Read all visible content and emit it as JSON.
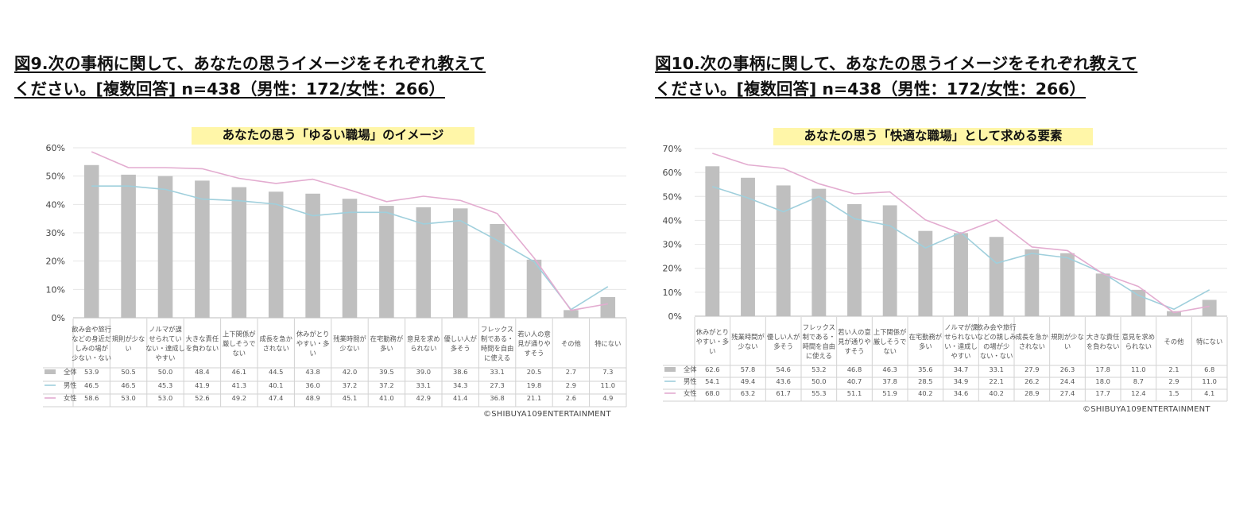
{
  "figures": [
    {
      "title_lines": [
        "図9.次の事柄に関して、あなたの思うイメージをそれぞれ教えて",
        "ください。[複数回答] n=438（男性：172/女性：266）"
      ],
      "copyright": "©SHIBUYA109ENTERTAINMENT"
    },
    {
      "title_lines": [
        "図10.次の事柄に関して、あなたの思うイメージをそれぞれ教えて",
        "ください。[複数回答] n=438（男性：172/女性：266）"
      ],
      "copyright": "©SHIBUYA109ENTERTAINMENT"
    }
  ],
  "chart_data": [
    {
      "type": "bar",
      "title": "あなたの思う「ゆるい職場」のイメージ",
      "ylim": [
        0,
        60
      ],
      "yticks": [
        "0%",
        "10%",
        "20%",
        "30%",
        "40%",
        "50%",
        "60%"
      ],
      "grid": true,
      "categories": [
        "飲み会や旅行などの身近しみの場が少ない・ない",
        "規則が少ない",
        "ノルマが課せられていない・達成しやすい",
        "大きな責任を負わない",
        "上下関係が厳しそうでない",
        "成長を急かされない",
        "休みがとりやすい・多い",
        "残業時間が少ない",
        "在宅勤務が多い",
        "意見を求められない",
        "優しい人が多そう",
        "フレックス制である・時間を自由に使える",
        "若い人の意見が通りやすそう",
        "その他",
        "特にない"
      ],
      "category_lines": [
        [
          "飲み会や旅行",
          "などの身近だ",
          "しみの場が",
          "少ない・ない"
        ],
        [
          "規則が少な",
          "い"
        ],
        [
          "ノルマが課",
          "せられてい",
          "ない・達成し",
          "やすい"
        ],
        [
          "大きな責任",
          "を負わない"
        ],
        [
          "上下関係が",
          "厳しそうで",
          "ない"
        ],
        [
          "成長を急か",
          "されない"
        ],
        [
          "休みがとり",
          "やすい・多",
          "い"
        ],
        [
          "残業時間が",
          "少ない"
        ],
        [
          "在宅勤務が",
          "多い"
        ],
        [
          "意見を求め",
          "られない"
        ],
        [
          "優しい人が",
          "多そう"
        ],
        [
          "フレックス",
          "制である・",
          "時間を自由",
          "に使える"
        ],
        [
          "若い人の意",
          "見が通りや",
          "すそう"
        ],
        [
          "その他"
        ],
        [
          "特にない"
        ]
      ],
      "series": [
        {
          "name": "全体",
          "kind": "bar",
          "color": "#bfbfbf",
          "values": [
            53.9,
            50.5,
            50.0,
            48.4,
            46.1,
            44.5,
            43.8,
            42.0,
            39.5,
            39.0,
            38.6,
            33.1,
            20.5,
            2.7,
            7.3
          ]
        },
        {
          "name": "男性",
          "kind": "line",
          "color": "#9fcfdc",
          "values": [
            46.5,
            46.5,
            45.3,
            41.9,
            41.3,
            40.1,
            36.0,
            37.2,
            37.2,
            33.1,
            34.3,
            27.3,
            19.8,
            2.9,
            11.0
          ]
        },
        {
          "name": "女性",
          "kind": "line",
          "color": "#e3acd0",
          "values": [
            58.6,
            53.0,
            53.0,
            52.6,
            49.2,
            47.4,
            48.9,
            45.1,
            41.0,
            42.9,
            41.4,
            36.8,
            21.1,
            2.6,
            4.9
          ]
        }
      ],
      "table_rows": [
        [
          "53.9",
          "50.5",
          "50.0",
          "48.4",
          "46.1",
          "44.5",
          "43.8",
          "42.0",
          "39.5",
          "39.0",
          "38.6",
          "33.1",
          "20.5",
          "2.7",
          "7.3"
        ],
        [
          "46.5",
          "46.5",
          "45.3",
          "41.9",
          "41.3",
          "40.1",
          "36.0",
          "37.2",
          "37.2",
          "33.1",
          "34.3",
          "27.3",
          "19.8",
          "2.9",
          "11.0"
        ],
        [
          "58.6",
          "53.0",
          "53.0",
          "52.6",
          "49.2",
          "47.4",
          "48.9",
          "45.1",
          "41.0",
          "42.9",
          "41.4",
          "36.8",
          "21.1",
          "2.6",
          "4.9"
        ]
      ]
    },
    {
      "type": "bar",
      "title": "あなたの思う「快適な職場」として求める要素",
      "ylim": [
        0,
        70
      ],
      "yticks": [
        "0%",
        "10%",
        "20%",
        "30%",
        "40%",
        "50%",
        "60%",
        "70%"
      ],
      "grid": true,
      "categories": [
        "休みがとりやすい・多い",
        "残業時間が少ない",
        "優しい人が多そう",
        "フレックス制である・時間を自由に使える",
        "若い人の意見が通りやすそう",
        "上下関係が厳しそうでない",
        "在宅勤務が多い",
        "ノルマが課せられない・達成しやすい",
        "飲み会や旅行などの親しみの場が少ない・ない",
        "成長を急かされない",
        "規則が少ない",
        "大きな責任を負わない",
        "意見を求められない",
        "その他",
        "特にない"
      ],
      "category_lines": [
        [
          "休みがとり",
          "やすい・多",
          "い"
        ],
        [
          "残業時間が",
          "少ない"
        ],
        [
          "優しい人が",
          "多そう"
        ],
        [
          "フレックス",
          "制である・",
          "時間を自由",
          "に使える"
        ],
        [
          "若い人の意",
          "見が通りや",
          "すそう"
        ],
        [
          "上下関係が",
          "厳しそうで",
          "ない"
        ],
        [
          "在宅勤務が",
          "多い"
        ],
        [
          "ノルマが課",
          "せられない",
          "い・達成し",
          "やすい"
        ],
        [
          "飲み会や旅行",
          "などの親しみ",
          "の場が少",
          "ない・ない"
        ],
        [
          "成長を急か",
          "されない"
        ],
        [
          "規則が少な",
          "い"
        ],
        [
          "大きな責任",
          "を負わない"
        ],
        [
          "意見を求め",
          "られない"
        ],
        [
          "その他"
        ],
        [
          "特にない"
        ]
      ],
      "series": [
        {
          "name": "全体",
          "kind": "bar",
          "color": "#bfbfbf",
          "values": [
            62.6,
            57.8,
            54.6,
            53.2,
            46.8,
            46.3,
            35.6,
            34.7,
            33.1,
            27.9,
            26.3,
            17.8,
            11.0,
            2.1,
            6.8
          ]
        },
        {
          "name": "男性",
          "kind": "line",
          "color": "#9fcfdc",
          "values": [
            54.1,
            49.4,
            43.6,
            50.0,
            40.7,
            37.8,
            28.5,
            34.9,
            22.1,
            26.2,
            24.4,
            18.0,
            8.7,
            2.9,
            11.0
          ]
        },
        {
          "name": "女性",
          "kind": "line",
          "color": "#e3acd0",
          "values": [
            68.0,
            63.2,
            61.7,
            55.3,
            51.1,
            51.9,
            40.2,
            34.6,
            40.2,
            28.9,
            27.4,
            17.7,
            12.4,
            1.5,
            4.1
          ]
        }
      ],
      "table_rows": [
        [
          "62.6",
          "57.8",
          "54.6",
          "53.2",
          "46.8",
          "46.3",
          "35.6",
          "34.7",
          "33.1",
          "27.9",
          "26.3",
          "17.8",
          "11.0",
          "2.1",
          "6.8"
        ],
        [
          "54.1",
          "49.4",
          "43.6",
          "50.0",
          "40.7",
          "37.8",
          "28.5",
          "34.9",
          "22.1",
          "26.2",
          "24.4",
          "18.0",
          "8.7",
          "2.9",
          "11.0"
        ],
        [
          "68.0",
          "63.2",
          "61.7",
          "55.3",
          "51.1",
          "51.9",
          "40.2",
          "34.6",
          "40.2",
          "28.9",
          "27.4",
          "17.7",
          "12.4",
          "1.5",
          "4.1"
        ]
      ]
    }
  ]
}
